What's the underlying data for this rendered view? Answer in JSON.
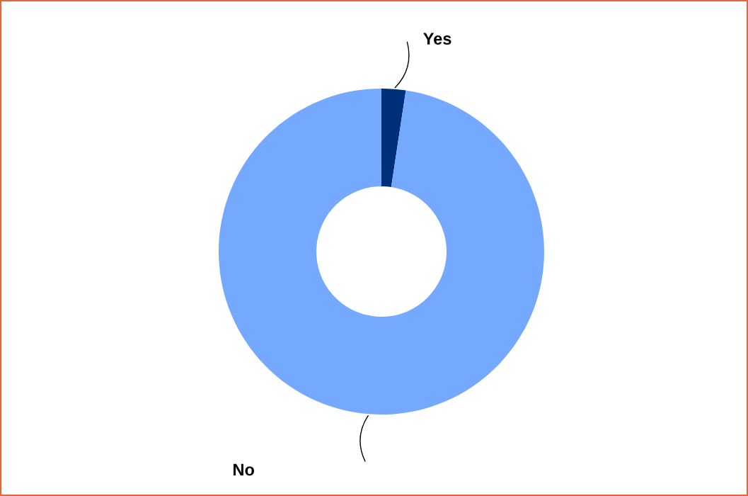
{
  "chart_data": {
    "type": "donut",
    "categories": [
      "Yes",
      "No"
    ],
    "values": [
      2.4,
      97.6
    ],
    "colors": [
      "#002f7a",
      "#75a8ff"
    ]
  }
}
